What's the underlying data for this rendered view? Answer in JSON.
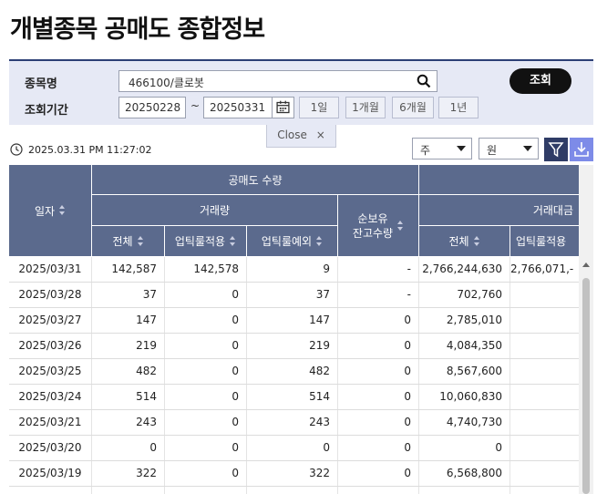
{
  "page": {
    "title": "개별종목 공매도 종합정보"
  },
  "search": {
    "stock_label": "종목명",
    "stock_value": "466100/클로봇",
    "period_label": "조회기간",
    "date_from": "20250228",
    "date_to": "20250331",
    "tilde": "~",
    "period_buttons": [
      "1일",
      "1개월",
      "6개월",
      "1년"
    ],
    "search_button": "조회",
    "close_label": "Close",
    "close_x": "×"
  },
  "toolbar": {
    "timestamp": "2025.03.31 PM 11:27:02",
    "period_select": "주",
    "unit_select": "원"
  },
  "table": {
    "headers": {
      "date": "일자",
      "short_qty": "공매도 수량",
      "trade_volume": "거래량",
      "net_balance": "순보유\n잔고수량",
      "trade_amount": "거래대금",
      "all": "전체",
      "uptick_applied": "업틱룰적용",
      "uptick_exempt": "업틱룰예외",
      "all2": "전체",
      "uptick_applied2": "업틱룰적용"
    },
    "rows": [
      [
        "2025/03/31",
        "142,587",
        "142,578",
        "9",
        "-",
        "2,766,244,630",
        "2,766,071,-"
      ],
      [
        "2025/03/28",
        "37",
        "0",
        "37",
        "-",
        "702,760",
        ""
      ],
      [
        "2025/03/27",
        "147",
        "0",
        "147",
        "0",
        "2,785,010",
        ""
      ],
      [
        "2025/03/26",
        "219",
        "0",
        "219",
        "0",
        "4,084,350",
        ""
      ],
      [
        "2025/03/25",
        "482",
        "0",
        "482",
        "0",
        "8,567,600",
        ""
      ],
      [
        "2025/03/24",
        "514",
        "0",
        "514",
        "0",
        "10,060,830",
        ""
      ],
      [
        "2025/03/21",
        "243",
        "0",
        "243",
        "0",
        "4,740,730",
        ""
      ],
      [
        "2025/03/20",
        "0",
        "0",
        "0",
        "0",
        "0",
        ""
      ],
      [
        "2025/03/19",
        "322",
        "0",
        "322",
        "0",
        "6,568,800",
        ""
      ],
      [
        "",
        "",
        "",
        "",
        "",
        "",
        ""
      ]
    ]
  },
  "colors": {
    "header_bg": "#5b6a8d",
    "panel_bg": "#e6e9f5",
    "accent_dark": "#2f3c66",
    "download_bg": "#7d8be8"
  }
}
